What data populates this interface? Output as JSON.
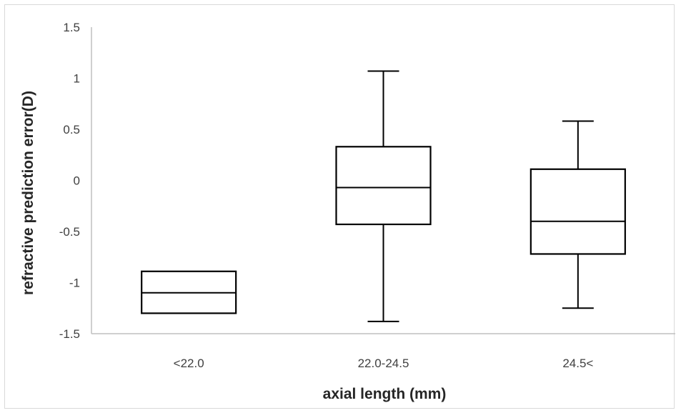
{
  "chart_data": {
    "type": "boxplot",
    "xlabel": "axial length (mm)",
    "ylabel": "refractive prediction error(D)",
    "ylim": [
      -1.5,
      1.5
    ],
    "yticks": [
      1.5,
      1,
      0.5,
      0,
      -0.5,
      -1,
      -1.5
    ],
    "ytick_labels": [
      "1.5",
      "1",
      "0.5",
      "0",
      "-0.5",
      "-1",
      "-1.5"
    ],
    "grid": false,
    "legend": "none",
    "categories": [
      "<22.0",
      "22.0-24.5",
      "24.5<"
    ],
    "boxes": [
      {
        "category": "<22.0",
        "min": -1.3,
        "q1": -1.3,
        "median": -1.1,
        "q3": -0.89,
        "max": -0.89
      },
      {
        "category": "22.0-24.5",
        "min": -1.38,
        "q1": -0.43,
        "median": -0.07,
        "q3": 0.33,
        "max": 1.07
      },
      {
        "category": "24.5<",
        "min": -1.25,
        "q1": -0.72,
        "median": -0.4,
        "q3": 0.11,
        "max": 0.58
      }
    ],
    "colors": {
      "stroke": "#000000",
      "axis": "#bfbfbf",
      "text": "#404040"
    }
  }
}
